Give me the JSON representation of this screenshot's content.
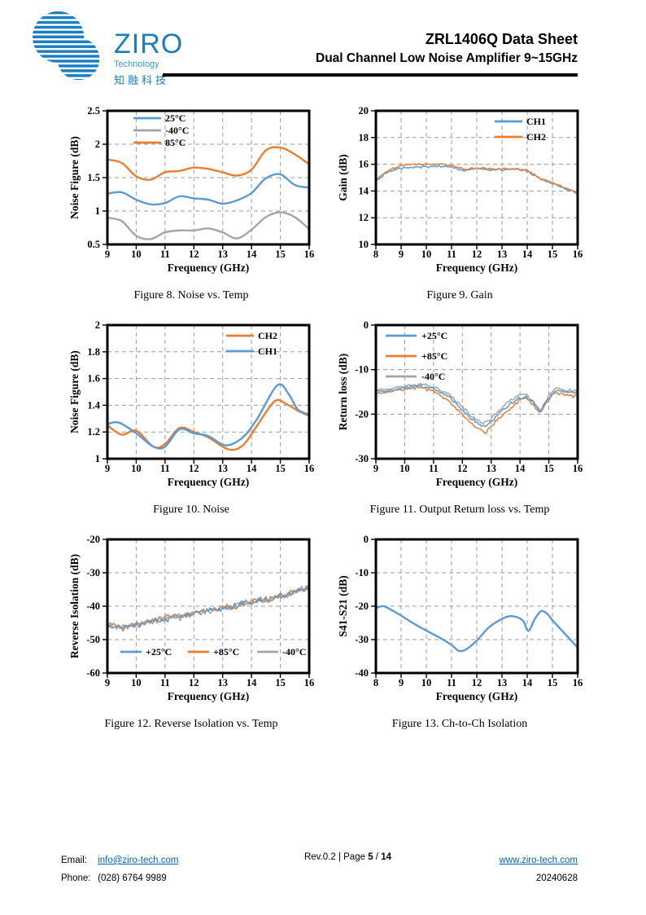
{
  "header": {
    "logo": {
      "brand": "ZIRO",
      "sub": "Technology",
      "cn": "知融科技",
      "color": "#1a7ec3"
    },
    "title": "ZRL1406Q Data Sheet",
    "subtitle": "Dual Channel Low Noise Amplifier 9~15GHz"
  },
  "footer": {
    "email_label": "Email:",
    "email": "info@ziro-tech.com",
    "phone_label": "Phone:",
    "phone": "(028) 6764 9989",
    "rev": "Rev.0.2 | Page ",
    "page": "5",
    "page_sep": " / ",
    "page_total": "14",
    "website": "www.ziro-tech.com",
    "date": "20240628",
    "link_color": "#0563C1"
  },
  "colors": {
    "blue": "#5B9BD5",
    "orange": "#ED7D31",
    "gray": "#A5A5A5",
    "grid": "#9b9b9b",
    "frame": "#000000"
  },
  "chart_data": [
    {
      "type": "line",
      "caption": "Figure 8. Noise vs. Temp",
      "xlabel": "Frequency (GHz)",
      "ylabel": "Noise Figure (dB)",
      "xlim": [
        9,
        16
      ],
      "ylim": [
        0.5,
        2.5
      ],
      "xticks": [
        9,
        10,
        11,
        12,
        13,
        14,
        15,
        16
      ],
      "yticks": [
        0.5,
        1,
        1.5,
        2,
        2.5
      ],
      "yticklabels": [
        "0.5",
        "1",
        "1.5",
        "2",
        "2.5"
      ],
      "grid": "dashed",
      "noise": 0,
      "legend": {
        "position": "top-left",
        "items": [
          {
            "label": "25°C",
            "color": "#5B9BD5"
          },
          {
            "label": "-40°C",
            "color": "#A5A5A5"
          },
          {
            "label": "85°C",
            "color": "#ED7D31"
          }
        ]
      },
      "series": [
        {
          "name": "25°C",
          "color": "#5B9BD5",
          "x": [
            9,
            9.5,
            10,
            10.5,
            11,
            11.5,
            12,
            12.5,
            13,
            13.5,
            14,
            14.5,
            15,
            15.5,
            16
          ],
          "y": [
            1.26,
            1.28,
            1.17,
            1.1,
            1.12,
            1.22,
            1.19,
            1.17,
            1.11,
            1.16,
            1.27,
            1.49,
            1.55,
            1.39,
            1.35
          ]
        },
        {
          "name": "-40°C",
          "color": "#A5A5A5",
          "x": [
            9,
            9.5,
            10,
            10.5,
            11,
            11.5,
            12,
            12.5,
            13,
            13.5,
            14,
            14.5,
            15,
            15.5,
            16
          ],
          "y": [
            0.9,
            0.85,
            0.63,
            0.58,
            0.68,
            0.71,
            0.71,
            0.74,
            0.68,
            0.59,
            0.72,
            0.91,
            0.98,
            0.91,
            0.73
          ]
        },
        {
          "name": "85°C",
          "color": "#ED7D31",
          "x": [
            9,
            9.5,
            10,
            10.5,
            11,
            11.5,
            12,
            12.5,
            13,
            13.5,
            14,
            14.5,
            15,
            15.5,
            16
          ],
          "y": [
            1.77,
            1.72,
            1.52,
            1.47,
            1.58,
            1.6,
            1.65,
            1.63,
            1.58,
            1.53,
            1.62,
            1.91,
            1.95,
            1.85,
            1.7
          ]
        }
      ]
    },
    {
      "type": "line",
      "caption": "Figure 9. Gain",
      "xlabel": "Frequency (GHz)",
      "ylabel": "Gain (dB)",
      "xlim": [
        8,
        16
      ],
      "ylim": [
        10,
        20
      ],
      "xticks": [
        8,
        9,
        10,
        11,
        12,
        13,
        14,
        15,
        16
      ],
      "yticks": [
        10,
        12,
        14,
        16,
        18,
        20
      ],
      "yticklabels": [
        "10",
        "12",
        "14",
        "16",
        "18",
        "20"
      ],
      "grid": "dashed",
      "noise": 0.09,
      "legend": {
        "position": "top-right",
        "items": [
          {
            "label": "CH1",
            "color": "#5B9BD5"
          },
          {
            "label": "CH2",
            "color": "#ED7D31"
          }
        ]
      },
      "series": [
        {
          "name": "CH1",
          "color": "#5B9BD5",
          "x": [
            8,
            8.5,
            9,
            9.5,
            10,
            10.5,
            11,
            11.5,
            12,
            12.5,
            13,
            13.5,
            14,
            14.5,
            15,
            15.5,
            16
          ],
          "y": [
            14.75,
            15.45,
            15.7,
            15.8,
            15.8,
            15.85,
            15.8,
            15.5,
            15.7,
            15.6,
            15.6,
            15.65,
            15.5,
            14.9,
            14.55,
            14.2,
            13.8
          ]
        },
        {
          "name": "CH2",
          "color": "#ED7D31",
          "x": [
            8,
            8.5,
            9,
            9.5,
            10,
            10.5,
            11,
            11.5,
            12,
            12.5,
            13,
            13.5,
            14,
            14.5,
            15,
            15.5,
            16
          ],
          "y": [
            14.85,
            15.55,
            15.9,
            16.0,
            16.0,
            16.0,
            15.9,
            15.6,
            15.75,
            15.65,
            15.65,
            15.7,
            15.55,
            14.95,
            14.6,
            14.25,
            13.82
          ]
        }
      ]
    },
    {
      "type": "line",
      "caption": "Figure 10. Noise",
      "xlabel": "Frequency (GHz)",
      "ylabel": "Noise Figure (dB)",
      "xlim": [
        9,
        16
      ],
      "ylim": [
        1,
        2
      ],
      "xticks": [
        9,
        10,
        11,
        12,
        13,
        14,
        15,
        16
      ],
      "yticks": [
        1,
        1.2,
        1.4,
        1.6,
        1.8,
        2
      ],
      "yticklabels": [
        "1",
        "1.2",
        "1.4",
        "1.6",
        "1.8",
        "2"
      ],
      "grid": "dashed",
      "noise": 0,
      "legend": {
        "position": "top-right",
        "items": [
          {
            "label": "CH2",
            "color": "#ED7D31"
          },
          {
            "label": "CH1",
            "color": "#5B9BD5"
          }
        ]
      },
      "series": [
        {
          "name": "CH2",
          "color": "#ED7D31",
          "x": [
            9,
            9.5,
            10,
            10.6,
            11,
            11.5,
            12,
            12.5,
            13.2,
            13.7,
            14.2,
            14.8,
            15.2,
            15.6,
            16
          ],
          "y": [
            1.25,
            1.18,
            1.21,
            1.09,
            1.11,
            1.23,
            1.2,
            1.16,
            1.07,
            1.1,
            1.25,
            1.43,
            1.41,
            1.36,
            1.32
          ]
        },
        {
          "name": "CH1",
          "color": "#5B9BD5",
          "x": [
            9,
            9.4,
            10,
            10.6,
            11,
            11.5,
            12,
            12.5,
            13.1,
            13.7,
            14.2,
            14.9,
            15.3,
            15.6,
            16
          ],
          "y": [
            1.26,
            1.27,
            1.19,
            1.09,
            1.09,
            1.22,
            1.19,
            1.17,
            1.1,
            1.16,
            1.3,
            1.55,
            1.48,
            1.37,
            1.33
          ]
        }
      ]
    },
    {
      "type": "line",
      "caption": "Figure 11. Output Return loss vs. Temp",
      "xlabel": "Frequency (GHz)",
      "ylabel": "Return loss (dB)",
      "xlim": [
        9,
        16
      ],
      "ylim": [
        -30,
        0
      ],
      "xticks": [
        9,
        10,
        11,
        12,
        13,
        14,
        15,
        16
      ],
      "yticks": [
        -30,
        -20,
        -10,
        0
      ],
      "yticklabels": [
        "-30",
        "-20",
        "-10",
        "0"
      ],
      "grid": "dashed",
      "noise": 0.45,
      "legend": {
        "position": "top-left-wide",
        "items": [
          {
            "label": "+25°C",
            "color": "#5B9BD5"
          },
          {
            "label": "+85°C",
            "color": "#ED7D31"
          },
          {
            "label": "-40°C",
            "color": "#A5A5A5"
          }
        ]
      },
      "series": [
        {
          "name": "-40°C",
          "color": "#A5A5A5",
          "x": [
            9,
            9.5,
            10,
            10.5,
            11,
            11.5,
            12,
            12.3,
            12.6,
            12.8,
            13,
            13.3,
            13.6,
            14,
            14.2,
            14.45,
            14.7,
            15,
            15.2,
            15.5,
            16
          ],
          "y": [
            -14.7,
            -14.3,
            -13.7,
            -13.3,
            -13.9,
            -15.4,
            -18.3,
            -20.5,
            -21.8,
            -22.0,
            -21.0,
            -18.8,
            -17.2,
            -15.7,
            -15.4,
            -17.0,
            -19.2,
            -15.9,
            -14.3,
            -14.5,
            -15.0
          ]
        },
        {
          "name": "+85°C",
          "color": "#ED7D31",
          "x": [
            9,
            9.5,
            10,
            10.5,
            11,
            11.5,
            12,
            12.3,
            12.6,
            12.8,
            13,
            13.3,
            13.6,
            14,
            14.2,
            14.45,
            14.7,
            15,
            15.2,
            15.5,
            16
          ],
          "y": [
            -15.3,
            -15.0,
            -14.3,
            -13.9,
            -14.8,
            -16.8,
            -20.0,
            -22.0,
            -23.5,
            -24.3,
            -22.8,
            -20.8,
            -19.0,
            -16.8,
            -16.4,
            -18.0,
            -19.8,
            -16.6,
            -15.3,
            -15.6,
            -16.0
          ]
        },
        {
          "name": "+25°C",
          "color": "#5B9BD5",
          "x": [
            9,
            9.5,
            10,
            10.5,
            11,
            11.5,
            12,
            12.3,
            12.6,
            12.8,
            13,
            13.3,
            13.6,
            14,
            14.2,
            14.45,
            14.7,
            15,
            15.2,
            15.5,
            16
          ],
          "y": [
            -15.0,
            -14.6,
            -14.0,
            -13.6,
            -14.3,
            -16.0,
            -19.0,
            -21.0,
            -22.5,
            -23.0,
            -21.8,
            -19.8,
            -18.0,
            -16.3,
            -16.0,
            -17.5,
            -19.5,
            -16.3,
            -14.8,
            -15.0,
            -15.2
          ]
        }
      ]
    },
    {
      "type": "line",
      "caption": "Figure 12. Reverse Isolation vs. Temp",
      "xlabel": "Frequency (GHz)",
      "ylabel": "Reverse Isolation (dB)",
      "xlim": [
        9,
        16
      ],
      "ylim": [
        -60,
        -20
      ],
      "xticks": [
        9,
        10,
        11,
        12,
        13,
        14,
        15,
        16
      ],
      "yticks": [
        -60,
        -50,
        -40,
        -30,
        -20
      ],
      "yticklabels": [
        "-60",
        "-50",
        "-40",
        "-30",
        "-20"
      ],
      "grid": "dashed",
      "noise": 1.1,
      "legend": {
        "position": "bottom",
        "items": [
          {
            "label": "+25°C",
            "color": "#5B9BD5"
          },
          {
            "label": "+85°C",
            "color": "#ED7D31"
          },
          {
            "label": "-40°C",
            "color": "#A5A5A5"
          }
        ]
      },
      "series": [
        {
          "name": "-40°C",
          "color": "#A5A5A5",
          "x": [
            9,
            9.5,
            10,
            10.5,
            11,
            11.5,
            12,
            12.5,
            13,
            13.5,
            14,
            14.5,
            15,
            15.5,
            16
          ],
          "y": [
            -46.5,
            -46.2,
            -45.8,
            -44.6,
            -43.4,
            -43.4,
            -42.2,
            -41.2,
            -40.8,
            -39.4,
            -38.8,
            -37.8,
            -37.4,
            -35.6,
            -34.2
          ]
        },
        {
          "name": "+85°C",
          "color": "#ED7D31",
          "x": [
            9,
            9.5,
            10,
            10.5,
            11,
            11.5,
            12,
            12.5,
            13,
            13.5,
            14,
            14.5,
            15,
            15.5,
            16
          ],
          "y": [
            -45.2,
            -46.8,
            -45.2,
            -44.5,
            -43.6,
            -43.0,
            -42.0,
            -41.5,
            -40.3,
            -39.8,
            -38.4,
            -38.2,
            -37.0,
            -35.5,
            -34.5
          ]
        },
        {
          "name": "+25°C",
          "color": "#5B9BD5",
          "x": [
            9,
            9.5,
            10,
            10.5,
            11,
            11.5,
            12,
            12.5,
            13,
            13.5,
            14,
            14.5,
            15,
            15.5,
            16
          ],
          "y": [
            -45.5,
            -46.5,
            -45.5,
            -44.8,
            -43.8,
            -43.2,
            -42.3,
            -41.3,
            -40.6,
            -39.6,
            -38.6,
            -38.0,
            -37.2,
            -35.8,
            -34.3
          ]
        }
      ]
    },
    {
      "type": "line",
      "caption": "Figure 13. Ch-to-Ch Isolation",
      "xlabel": "Frequency (GHz)",
      "ylabel": "S41-S21 (dB)",
      "xlim": [
        8,
        16
      ],
      "ylim": [
        -40,
        0
      ],
      "xticks": [
        8,
        9,
        10,
        11,
        12,
        13,
        14,
        15,
        16
      ],
      "yticks": [
        -40,
        -30,
        -20,
        -10,
        0
      ],
      "yticklabels": [
        "-40",
        "-30",
        "-20",
        "-10",
        "0"
      ],
      "grid": "dashed",
      "noise": 0,
      "legend": null,
      "series": [
        {
          "name": "S41-S21",
          "color": "#5B9BD5",
          "x": [
            8,
            8.3,
            8.7,
            9,
            9.5,
            10,
            10.5,
            11,
            11.3,
            11.6,
            12,
            12.5,
            13,
            13.3,
            13.6,
            13.85,
            14.05,
            14.3,
            14.55,
            14.8,
            15,
            15.5,
            16
          ],
          "y": [
            -20.6,
            -20.0,
            -21.5,
            -22.8,
            -25.2,
            -27.3,
            -29.3,
            -31.6,
            -33.4,
            -32.8,
            -30.3,
            -26.2,
            -23.8,
            -23.0,
            -23.3,
            -24.5,
            -27.4,
            -23.8,
            -21.5,
            -22.3,
            -24.2,
            -28.3,
            -32.4
          ]
        }
      ]
    }
  ]
}
